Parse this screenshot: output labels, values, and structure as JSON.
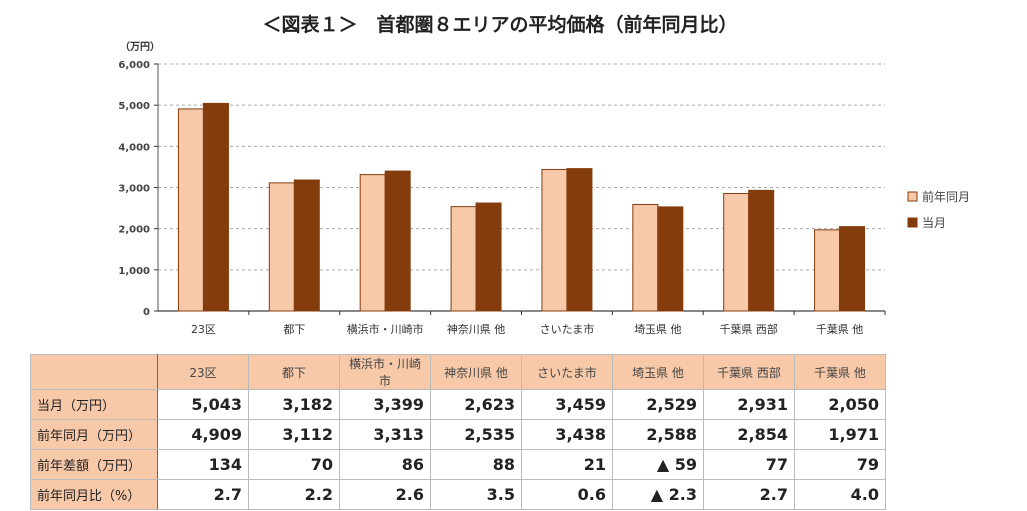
{
  "title": "＜図表１＞　首都圏８エリアの平均価格（前年同月比）",
  "chart_data": {
    "type": "bar",
    "title": "＜図表１＞　首都圏８エリアの平均価格（前年同月比）",
    "ylabel": "（万円）",
    "ylim": [
      0,
      6000
    ],
    "yticks": [
      "0",
      "1,000",
      "2,000",
      "3,000",
      "4,000",
      "5,000",
      "6,000"
    ],
    "grid": true,
    "legend_position": "right",
    "categories": [
      "23区",
      "都下",
      "横浜市・川崎市",
      "神奈川県 他",
      "さいたま市",
      "埼玉県 他",
      "千葉県 西部",
      "千葉県 他"
    ],
    "series": [
      {
        "name": "前年同月",
        "color": "#f7c9a9",
        "values": [
          4909,
          3112,
          3313,
          2535,
          3438,
          2588,
          2854,
          1971
        ]
      },
      {
        "name": "当月",
        "color": "#843c0c",
        "values": [
          5043,
          3182,
          3399,
          2623,
          3459,
          2529,
          2931,
          2050
        ]
      }
    ]
  },
  "table": {
    "header": [
      "23区",
      "都下",
      "横浜市・川崎市",
      "神奈川県 他",
      "さいたま市",
      "埼玉県 他",
      "千葉県 西部",
      "千葉県 他"
    ],
    "rows": [
      {
        "label": "当月（万円）",
        "cells": [
          "5,043",
          "3,182",
          "3,399",
          "2,623",
          "3,459",
          "2,529",
          "2,931",
          "2,050"
        ]
      },
      {
        "label": "前年同月（万円）",
        "cells": [
          "4,909",
          "3,112",
          "3,313",
          "2,535",
          "3,438",
          "2,588",
          "2,854",
          "1,971"
        ]
      },
      {
        "label": "前年差額（万円）",
        "cells": [
          "134",
          "70",
          "86",
          "88",
          "21",
          "▲ 59",
          "77",
          "79"
        ]
      },
      {
        "label": "前年同月比（%）",
        "cells": [
          "2.7",
          "2.2",
          "2.6",
          "3.5",
          "0.6",
          "▲ 2.3",
          "2.7",
          "4.0"
        ]
      }
    ]
  }
}
